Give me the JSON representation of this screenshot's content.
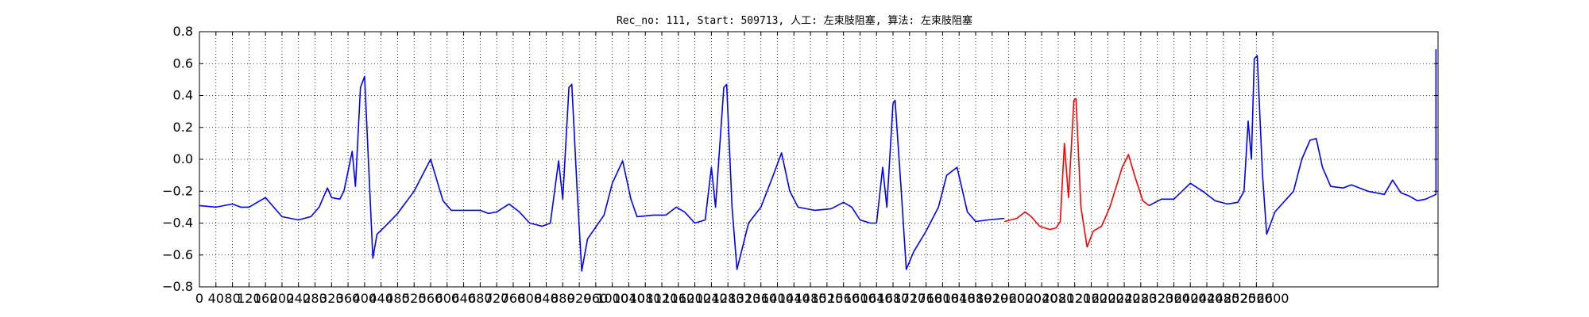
{
  "chart_data": {
    "type": "line",
    "title": "Rec_no: 111, Start: 509713, 人工: 左束肢阻塞, 算法: 左束肢阻塞",
    "xlabel": "",
    "ylabel": "",
    "xlim": [
      0,
      3000
    ],
    "ylim": [
      -0.8,
      0.8
    ],
    "grid": true,
    "x_ticks": [
      0,
      40,
      80,
      120,
      160,
      200,
      240,
      280,
      320,
      360,
      400,
      440,
      480,
      520,
      560,
      600,
      640,
      680,
      720,
      760,
      800,
      840,
      880,
      920,
      960,
      1000,
      1040,
      1080,
      1120,
      1160,
      1200,
      1240,
      1280,
      1320,
      1360,
      1400,
      1440,
      1480,
      1520,
      1560,
      1600,
      1640,
      1680,
      1720,
      1760,
      1800,
      1840,
      1880,
      1920,
      1960,
      2000,
      2040,
      2080,
      2120,
      2160,
      2200,
      2240,
      2280,
      2320,
      2360,
      2400,
      2440,
      2480,
      2520,
      2560,
      2600
    ],
    "y_ticks": [
      -0.8,
      -0.6,
      -0.4,
      -0.2,
      0.0,
      0.2,
      0.4,
      0.6,
      0.8
    ],
    "y_tick_labels": [
      "−0.8",
      "−0.6",
      "−0.4",
      "−0.2",
      "0.0",
      "0.2",
      "0.4",
      "0.6",
      "0.8"
    ],
    "baseline": [
      [
        0,
        -0.29
      ],
      [
        40,
        -0.3
      ],
      [
        80,
        -0.28
      ],
      [
        100,
        -0.3
      ],
      [
        120,
        -0.3
      ],
      [
        140,
        -0.27
      ],
      [
        160,
        -0.24
      ],
      [
        180,
        -0.3
      ],
      [
        200,
        -0.36
      ],
      [
        240,
        -0.38
      ],
      [
        270,
        -0.36
      ],
      [
        290,
        -0.3
      ],
      [
        310,
        -0.18
      ],
      [
        320,
        -0.24
      ],
      [
        340,
        -0.25
      ],
      [
        350,
        -0.2
      ],
      [
        370,
        0.05
      ],
      [
        378,
        -0.17
      ],
      [
        390,
        0.45
      ],
      [
        400,
        0.52
      ],
      [
        410,
        -0.05
      ],
      [
        420,
        -0.62
      ],
      [
        430,
        -0.47
      ],
      [
        450,
        -0.42
      ],
      [
        480,
        -0.34
      ],
      [
        520,
        -0.2
      ],
      [
        560,
        0.0
      ],
      [
        590,
        -0.26
      ],
      [
        610,
        -0.32
      ],
      [
        640,
        -0.32
      ],
      [
        680,
        -0.32
      ],
      [
        700,
        -0.34
      ],
      [
        720,
        -0.33
      ],
      [
        750,
        -0.28
      ],
      [
        775,
        -0.33
      ],
      [
        800,
        -0.4
      ],
      [
        830,
        -0.42
      ],
      [
        850,
        -0.4
      ],
      [
        870,
        -0.01
      ],
      [
        880,
        -0.25
      ],
      [
        895,
        0.45
      ],
      [
        902,
        0.47
      ],
      [
        915,
        -0.2
      ],
      [
        926,
        -0.7
      ],
      [
        940,
        -0.5
      ],
      [
        980,
        -0.35
      ],
      [
        1000,
        -0.15
      ],
      [
        1025,
        -0.01
      ],
      [
        1045,
        -0.25
      ],
      [
        1060,
        -0.36
      ],
      [
        1100,
        -0.35
      ],
      [
        1130,
        -0.35
      ],
      [
        1155,
        -0.3
      ],
      [
        1175,
        -0.33
      ],
      [
        1200,
        -0.4
      ],
      [
        1225,
        -0.38
      ],
      [
        1240,
        -0.05
      ],
      [
        1250,
        -0.3
      ],
      [
        1270,
        0.45
      ],
      [
        1277,
        0.47
      ],
      [
        1290,
        -0.3
      ],
      [
        1302,
        -0.69
      ],
      [
        1330,
        -0.4
      ],
      [
        1360,
        -0.3
      ],
      [
        1390,
        -0.1
      ],
      [
        1410,
        0.04
      ],
      [
        1430,
        -0.2
      ],
      [
        1450,
        -0.3
      ],
      [
        1490,
        -0.32
      ],
      [
        1530,
        -0.31
      ],
      [
        1560,
        -0.27
      ],
      [
        1580,
        -0.3
      ],
      [
        1600,
        -0.38
      ],
      [
        1625,
        -0.4
      ],
      [
        1640,
        -0.4
      ],
      [
        1655,
        -0.05
      ],
      [
        1665,
        -0.3
      ],
      [
        1680,
        0.35
      ],
      [
        1685,
        0.37
      ],
      [
        1700,
        -0.2
      ],
      [
        1712,
        -0.69
      ],
      [
        1730,
        -0.58
      ],
      [
        1760,
        -0.45
      ],
      [
        1790,
        -0.3
      ],
      [
        1810,
        -0.1
      ],
      [
        1835,
        -0.05
      ],
      [
        1860,
        -0.33
      ],
      [
        1880,
        -0.39
      ],
      [
        1910,
        -0.38
      ],
      [
        1950,
        -0.37
      ]
    ],
    "highlight": [
      [
        1950,
        -0.39
      ],
      [
        1980,
        -0.37
      ],
      [
        2000,
        -0.33
      ],
      [
        2015,
        -0.36
      ],
      [
        2035,
        -0.42
      ],
      [
        2060,
        -0.44
      ],
      [
        2075,
        -0.43
      ],
      [
        2085,
        -0.39
      ],
      [
        2095,
        0.1
      ],
      [
        2105,
        -0.24
      ],
      [
        2118,
        0.37
      ],
      [
        2123,
        0.38
      ],
      [
        2135,
        -0.3
      ],
      [
        2150,
        -0.55
      ],
      [
        2165,
        -0.45
      ],
      [
        2185,
        -0.42
      ],
      [
        2205,
        -0.3
      ],
      [
        2235,
        -0.05
      ],
      [
        2250,
        0.03
      ],
      [
        2265,
        -0.1
      ],
      [
        2285,
        -0.26
      ],
      [
        2300,
        -0.29
      ]
    ],
    "tail": [
      [
        2300,
        -0.29
      ],
      [
        2330,
        -0.25
      ],
      [
        2360,
        -0.25
      ],
      [
        2380,
        -0.2
      ],
      [
        2400,
        -0.15
      ],
      [
        2430,
        -0.2
      ],
      [
        2460,
        -0.26
      ],
      [
        2490,
        -0.28
      ],
      [
        2515,
        -0.27
      ],
      [
        2530,
        -0.2
      ],
      [
        2540,
        0.24
      ],
      [
        2548,
        0.0
      ],
      [
        2555,
        0.63
      ],
      [
        2562,
        0.65
      ],
      [
        2575,
        -0.1
      ],
      [
        2585,
        -0.47
      ],
      [
        2605,
        -0.33
      ],
      [
        2650,
        -0.2
      ],
      [
        2670,
        0.0
      ],
      [
        2690,
        0.12
      ],
      [
        2705,
        0.13
      ],
      [
        2720,
        -0.05
      ],
      [
        2740,
        -0.17
      ],
      [
        2770,
        -0.18
      ],
      [
        2790,
        -0.16
      ],
      [
        2810,
        -0.18
      ],
      [
        2830,
        -0.2
      ],
      [
        2870,
        -0.22
      ],
      [
        2890,
        -0.13
      ],
      [
        2910,
        -0.21
      ],
      [
        2930,
        -0.23
      ],
      [
        2950,
        -0.26
      ],
      [
        2970,
        -0.25
      ],
      [
        2995,
        -0.22
      ],
      [
        2995,
        0.69
      ]
    ]
  }
}
